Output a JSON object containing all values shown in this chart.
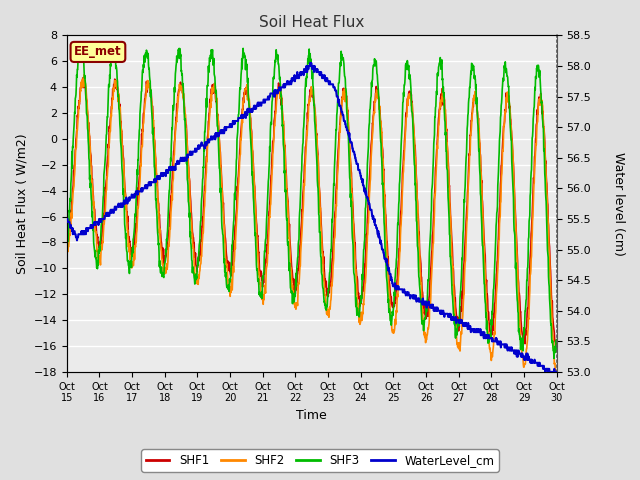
{
  "title": "Soil Heat Flux",
  "ylabel_left": "Soil Heat Flux ( W/m2)",
  "ylabel_right": "Water level (cm)",
  "xlabel": "Time",
  "ylim_left": [
    -18,
    8
  ],
  "ylim_right": [
    53.0,
    58.5
  ],
  "yticks_left": [
    -18,
    -16,
    -14,
    -12,
    -10,
    -8,
    -6,
    -4,
    -2,
    0,
    2,
    4,
    6,
    8
  ],
  "yticks_right": [
    53.0,
    53.5,
    54.0,
    54.5,
    55.0,
    55.5,
    56.0,
    56.5,
    57.0,
    57.5,
    58.0,
    58.5
  ],
  "xtick_labels": [
    "Oct 15",
    "Oct 16",
    "Oct 17",
    "Oct 18",
    "Oct 19",
    "Oct 20",
    "Oct 21",
    "Oct 22",
    "Oct 23",
    "Oct 24",
    "Oct 25",
    "Oct 26",
    "Oct 27",
    "Oct 28",
    "Oct 29",
    "Oct 30"
  ],
  "colors": {
    "SHF1": "#cc0000",
    "SHF2": "#ff8800",
    "SHF3": "#00bb00",
    "WaterLevel_cm": "#0000cc"
  },
  "bg_color": "#e0e0e0",
  "plot_bg_color": "#ebebeb",
  "station_label": "EE_met",
  "station_label_fg": "#8b0000",
  "station_label_bg": "#ffff99",
  "linewidth": 1.2
}
